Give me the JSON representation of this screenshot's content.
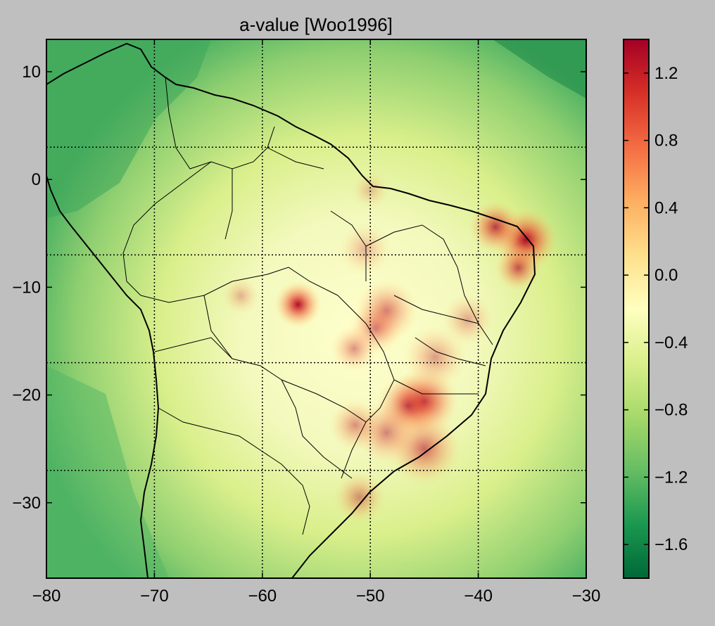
{
  "title": "a-value [Woo1996]",
  "map": {
    "lon_range": [
      -80,
      -30
    ],
    "lat_range": [
      -37,
      13
    ],
    "x_ticks": [
      {
        "value": -80,
        "label": "−80"
      },
      {
        "value": -70,
        "label": "−70"
      },
      {
        "value": -60,
        "label": "−60"
      },
      {
        "value": -50,
        "label": "−50"
      },
      {
        "value": -40,
        "label": "−40"
      },
      {
        "value": -30,
        "label": "−30"
      }
    ],
    "y_ticks": [
      {
        "value": 10,
        "label": "10"
      },
      {
        "value": 0,
        "label": "0"
      },
      {
        "value": -10,
        "label": "−10"
      },
      {
        "value": -20,
        "label": "−20"
      },
      {
        "value": -30,
        "label": "−30"
      }
    ],
    "meridians": [
      -70,
      -60,
      -50,
      -40
    ],
    "parallels": [
      3,
      -7,
      -17,
      -27
    ],
    "grid_style": "dotted",
    "hotspots": [
      {
        "lon": -56.7,
        "lat": -11.6,
        "intensity": 1.0,
        "spread": 2.2
      },
      {
        "lon": -35.6,
        "lat": -5.6,
        "intensity": 1.0,
        "spread": 3.0
      },
      {
        "lon": -38.4,
        "lat": -4.4,
        "intensity": 0.8,
        "spread": 2.5
      },
      {
        "lon": -36.3,
        "lat": -8.2,
        "intensity": 0.7,
        "spread": 2.2
      },
      {
        "lon": -45.0,
        "lat": -20.6,
        "intensity": 0.9,
        "spread": 3.2
      },
      {
        "lon": -46.5,
        "lat": -21.0,
        "intensity": 0.7,
        "spread": 3.0
      },
      {
        "lon": -48.5,
        "lat": -12.2,
        "intensity": 0.55,
        "spread": 3.0
      },
      {
        "lon": -49.5,
        "lat": -13.8,
        "intensity": 0.5,
        "spread": 2.5
      },
      {
        "lon": -51.5,
        "lat": -15.7,
        "intensity": 0.45,
        "spread": 2.2
      },
      {
        "lon": -45.0,
        "lat": -25.0,
        "intensity": 0.6,
        "spread": 3.5
      },
      {
        "lon": -48.5,
        "lat": -23.5,
        "intensity": 0.5,
        "spread": 3.0
      },
      {
        "lon": -51.4,
        "lat": -22.8,
        "intensity": 0.45,
        "spread": 2.5
      },
      {
        "lon": -51.0,
        "lat": -29.5,
        "intensity": 0.45,
        "spread": 2.5
      },
      {
        "lon": -44.0,
        "lat": -16.5,
        "intensity": 0.4,
        "spread": 3.0
      },
      {
        "lon": -41.0,
        "lat": -13.0,
        "intensity": 0.35,
        "spread": 2.5
      },
      {
        "lon": -62.0,
        "lat": -10.8,
        "intensity": 0.3,
        "spread": 1.8
      },
      {
        "lon": -50.5,
        "lat": -6.5,
        "intensity": 0.3,
        "spread": 2.5
      },
      {
        "lon": -50.0,
        "lat": -1.0,
        "intensity": 0.25,
        "spread": 1.8
      }
    ]
  },
  "colorbar": {
    "min": -1.8,
    "max": 1.4,
    "ticks": [
      {
        "value": 1.2,
        "label": "1.2"
      },
      {
        "value": 0.8,
        "label": "0.8"
      },
      {
        "value": 0.4,
        "label": "0.4"
      },
      {
        "value": 0.0,
        "label": "0.0"
      },
      {
        "value": -0.4,
        "label": "−0.4"
      },
      {
        "value": -0.8,
        "label": "−0.8"
      },
      {
        "value": -1.2,
        "label": "−1.2"
      },
      {
        "value": -1.6,
        "label": "−1.6"
      }
    ],
    "colormap": "RdYlGn_r",
    "colors": [
      "#006837",
      "#1a9850",
      "#66bd63",
      "#a6d96a",
      "#d9ef8b",
      "#ffffbf",
      "#fee08b",
      "#fdae61",
      "#f46d43",
      "#d73027",
      "#a50026"
    ]
  }
}
